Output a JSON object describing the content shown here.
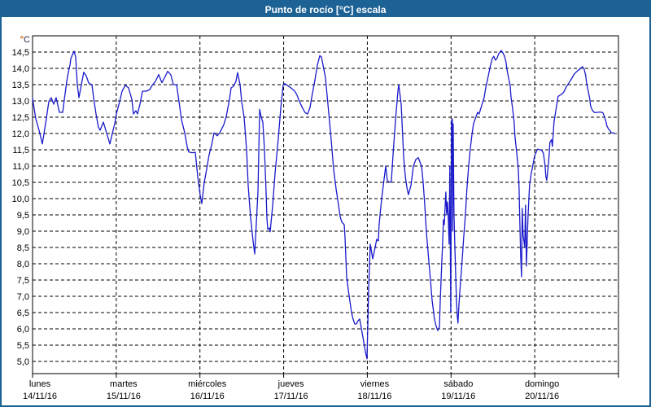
{
  "window": {
    "title": "Punto de rocío [°C] escala"
  },
  "chart_data": {
    "type": "line",
    "title": "Punto de rocío [°C] escala",
    "ylabel": "°C",
    "y_unit": "°C",
    "ylim": [
      5.0,
      14.5
    ],
    "ytick_step": 0.5,
    "decimal_separator": ",",
    "grid": "dashed",
    "legend_position": "none",
    "line_color": "#1a1acc",
    "x_axis": {
      "unit": "days",
      "range_days": 7,
      "days": [
        {
          "weekday": "lunes",
          "date": "14/11/16"
        },
        {
          "weekday": "martes",
          "date": "15/11/16"
        },
        {
          "weekday": "miércoles",
          "date": "16/11/16"
        },
        {
          "weekday": "jueves",
          "date": "17/11/16"
        },
        {
          "weekday": "viernes",
          "date": "18/11/16"
        },
        {
          "weekday": "sábado",
          "date": "19/11/16"
        },
        {
          "weekday": "domingo",
          "date": "20/11/16"
        }
      ]
    },
    "series": [
      {
        "name": "Punto de rocío",
        "points": [
          [
            0.0,
            13.08
          ],
          [
            0.039,
            12.45
          ],
          [
            0.078,
            12.1
          ],
          [
            0.117,
            11.68
          ],
          [
            0.156,
            12.3
          ],
          [
            0.194,
            12.98
          ],
          [
            0.224,
            13.1
          ],
          [
            0.253,
            12.9
          ],
          [
            0.282,
            13.1
          ],
          [
            0.321,
            12.65
          ],
          [
            0.36,
            12.65
          ],
          [
            0.408,
            13.6
          ],
          [
            0.437,
            14.0
          ],
          [
            0.447,
            14.1
          ],
          [
            0.457,
            14.3
          ],
          [
            0.496,
            14.53
          ],
          [
            0.515,
            14.35
          ],
          [
            0.535,
            13.5
          ],
          [
            0.554,
            13.1
          ],
          [
            0.583,
            13.5
          ],
          [
            0.612,
            13.88
          ],
          [
            0.642,
            13.77
          ],
          [
            0.671,
            13.55
          ],
          [
            0.69,
            13.52
          ],
          [
            0.71,
            13.5
          ],
          [
            0.729,
            13.1
          ],
          [
            0.758,
            12.6
          ],
          [
            0.787,
            12.2
          ],
          [
            0.807,
            12.1
          ],
          [
            0.846,
            12.35
          ],
          [
            0.875,
            12.1
          ],
          [
            0.904,
            11.85
          ],
          [
            0.924,
            11.68
          ],
          [
            0.953,
            12.0
          ],
          [
            0.982,
            12.3
          ],
          [
            1.001,
            12.6
          ],
          [
            1.04,
            12.98
          ],
          [
            1.069,
            13.3
          ],
          [
            1.108,
            13.48
          ],
          [
            1.147,
            13.4
          ],
          [
            1.186,
            13.05
          ],
          [
            1.206,
            12.6
          ],
          [
            1.235,
            12.7
          ],
          [
            1.254,
            12.6
          ],
          [
            1.283,
            12.9
          ],
          [
            1.313,
            13.3
          ],
          [
            1.361,
            13.3
          ],
          [
            1.4,
            13.35
          ],
          [
            1.429,
            13.48
          ],
          [
            1.468,
            13.6
          ],
          [
            1.507,
            13.81
          ],
          [
            1.546,
            13.56
          ],
          [
            1.585,
            13.75
          ],
          [
            1.614,
            13.91
          ],
          [
            1.653,
            13.8
          ],
          [
            1.682,
            13.5
          ],
          [
            1.721,
            13.5
          ],
          [
            1.75,
            12.98
          ],
          [
            1.779,
            12.43
          ],
          [
            1.818,
            12.02
          ],
          [
            1.847,
            11.6
          ],
          [
            1.867,
            11.43
          ],
          [
            1.906,
            11.41
          ],
          [
            1.944,
            11.42
          ],
          [
            1.974,
            10.68
          ],
          [
            2.003,
            10.1
          ],
          [
            2.022,
            9.85
          ],
          [
            2.051,
            10.5
          ],
          [
            2.071,
            10.77
          ],
          [
            2.11,
            11.35
          ],
          [
            2.139,
            11.64
          ],
          [
            2.168,
            12.02
          ],
          [
            2.207,
            11.93
          ],
          [
            2.236,
            12.02
          ],
          [
            2.285,
            12.27
          ],
          [
            2.314,
            12.52
          ],
          [
            2.353,
            13.05
          ],
          [
            2.372,
            13.4
          ],
          [
            2.401,
            13.45
          ],
          [
            2.43,
            13.6
          ],
          [
            2.45,
            13.87
          ],
          [
            2.479,
            13.5
          ],
          [
            2.499,
            12.98
          ],
          [
            2.528,
            12.5
          ],
          [
            2.557,
            11.5
          ],
          [
            2.576,
            10.4
          ],
          [
            2.606,
            9.4
          ],
          [
            2.635,
            8.7
          ],
          [
            2.654,
            8.3
          ],
          [
            2.693,
            10.2
          ],
          [
            2.713,
            12.74
          ],
          [
            2.732,
            12.5
          ],
          [
            2.751,
            12.35
          ],
          [
            2.771,
            11.5
          ],
          [
            2.79,
            10.2
          ],
          [
            2.8,
            9.4
          ],
          [
            2.81,
            9.06
          ],
          [
            2.829,
            9.1
          ],
          [
            2.839,
            8.98
          ],
          [
            2.868,
            9.77
          ],
          [
            2.897,
            10.77
          ],
          [
            2.936,
            11.85
          ],
          [
            2.965,
            12.77
          ],
          [
            2.994,
            13.5
          ],
          [
            3.014,
            13.53
          ],
          [
            3.043,
            13.48
          ],
          [
            3.092,
            13.39
          ],
          [
            3.13,
            13.31
          ],
          [
            3.16,
            13.18
          ],
          [
            3.189,
            12.98
          ],
          [
            3.228,
            12.77
          ],
          [
            3.257,
            12.64
          ],
          [
            3.286,
            12.6
          ],
          [
            3.315,
            12.8
          ],
          [
            3.335,
            13.1
          ],
          [
            3.374,
            13.64
          ],
          [
            3.403,
            14.1
          ],
          [
            3.432,
            14.39
          ],
          [
            3.451,
            14.35
          ],
          [
            3.471,
            14.1
          ],
          [
            3.5,
            13.7
          ],
          [
            3.529,
            12.9
          ],
          [
            3.568,
            11.8
          ],
          [
            3.597,
            10.9
          ],
          [
            3.626,
            10.3
          ],
          [
            3.656,
            9.8
          ],
          [
            3.675,
            9.45
          ],
          [
            3.694,
            9.28
          ],
          [
            3.724,
            9.2
          ],
          [
            3.733,
            8.8
          ],
          [
            3.753,
            7.6
          ],
          [
            3.772,
            7.2
          ],
          [
            3.792,
            6.85
          ],
          [
            3.811,
            6.5
          ],
          [
            3.83,
            6.3
          ],
          [
            3.85,
            6.15
          ],
          [
            3.869,
            6.15
          ],
          [
            3.889,
            6.25
          ],
          [
            3.908,
            6.3
          ],
          [
            3.937,
            5.9
          ],
          [
            3.957,
            5.6
          ],
          [
            3.976,
            5.3
          ],
          [
            3.996,
            5.08
          ],
          [
            4.005,
            6.0
          ],
          [
            4.015,
            7.2
          ],
          [
            4.035,
            8.6
          ],
          [
            4.064,
            8.15
          ],
          [
            4.093,
            8.5
          ],
          [
            4.112,
            8.75
          ],
          [
            4.132,
            8.7
          ],
          [
            4.141,
            9.2
          ],
          [
            4.171,
            10.0
          ],
          [
            4.19,
            10.4
          ],
          [
            4.219,
            11.0
          ],
          [
            4.239,
            10.55
          ],
          [
            4.268,
            10.5
          ],
          [
            4.287,
            10.52
          ],
          [
            4.307,
            11.35
          ],
          [
            4.336,
            12.4
          ],
          [
            4.365,
            13.3
          ],
          [
            4.375,
            13.5
          ],
          [
            4.404,
            12.9
          ],
          [
            4.433,
            11.3
          ],
          [
            4.453,
            10.7
          ],
          [
            4.472,
            10.35
          ],
          [
            4.491,
            10.12
          ],
          [
            4.521,
            10.4
          ],
          [
            4.55,
            11.0
          ],
          [
            4.579,
            11.2
          ],
          [
            4.608,
            11.26
          ],
          [
            4.647,
            11.0
          ],
          [
            4.667,
            10.5
          ],
          [
            4.686,
            9.8
          ],
          [
            4.705,
            9.0
          ],
          [
            4.734,
            8.1
          ],
          [
            4.754,
            7.5
          ],
          [
            4.773,
            6.9
          ],
          [
            4.802,
            6.3
          ],
          [
            4.822,
            6.08
          ],
          [
            4.841,
            5.95
          ],
          [
            4.861,
            6.06
          ],
          [
            4.87,
            6.8
          ],
          [
            4.88,
            7.4
          ],
          [
            4.89,
            8.1
          ],
          [
            4.899,
            8.6
          ],
          [
            4.909,
            9.35
          ],
          [
            4.919,
            9.2
          ],
          [
            4.928,
            9.7
          ],
          [
            4.938,
            10.2
          ],
          [
            4.948,
            9.5
          ],
          [
            4.957,
            9.9
          ],
          [
            4.967,
            9.4
          ],
          [
            4.977,
            8.6
          ],
          [
            4.986,
            11.0
          ],
          [
            4.996,
            6.5
          ],
          [
            5.006,
            12.4
          ],
          [
            5.015,
            12.45
          ],
          [
            5.02,
            9.0
          ],
          [
            5.025,
            12.3
          ],
          [
            5.035,
            9.5
          ],
          [
            5.045,
            8.6
          ],
          [
            5.054,
            7.8
          ],
          [
            5.064,
            6.9
          ],
          [
            5.074,
            6.4
          ],
          [
            5.083,
            6.18
          ],
          [
            5.093,
            6.7
          ],
          [
            5.112,
            7.4
          ],
          [
            5.132,
            8.1
          ],
          [
            5.151,
            8.8
          ],
          [
            5.171,
            9.5
          ],
          [
            5.19,
            10.3
          ],
          [
            5.21,
            11.0
          ],
          [
            5.229,
            11.5
          ],
          [
            5.249,
            11.95
          ],
          [
            5.268,
            12.3
          ],
          [
            5.297,
            12.5
          ],
          [
            5.317,
            12.65
          ],
          [
            5.336,
            12.6
          ],
          [
            5.365,
            12.85
          ],
          [
            5.395,
            13.1
          ],
          [
            5.414,
            13.4
          ],
          [
            5.443,
            13.75
          ],
          [
            5.472,
            14.1
          ],
          [
            5.492,
            14.3
          ],
          [
            5.511,
            14.37
          ],
          [
            5.531,
            14.25
          ],
          [
            5.55,
            14.32
          ],
          [
            5.57,
            14.45
          ],
          [
            5.599,
            14.55
          ],
          [
            5.618,
            14.48
          ],
          [
            5.638,
            14.38
          ],
          [
            5.657,
            14.18
          ],
          [
            5.667,
            13.98
          ],
          [
            5.686,
            13.73
          ],
          [
            5.706,
            13.48
          ],
          [
            5.716,
            13.14
          ],
          [
            5.735,
            12.77
          ],
          [
            5.754,
            12.35
          ],
          [
            5.764,
            11.89
          ],
          [
            5.784,
            11.43
          ],
          [
            5.803,
            10.93
          ],
          [
            5.813,
            10.3
          ],
          [
            5.822,
            9.3
          ],
          [
            5.832,
            8.2
          ],
          [
            5.842,
            7.6
          ],
          [
            5.851,
            9.7
          ],
          [
            5.861,
            8.9
          ],
          [
            5.88,
            8.5
          ],
          [
            5.89,
            9.8
          ],
          [
            5.9,
            7.93
          ],
          [
            5.919,
            9.4
          ],
          [
            5.929,
            9.93
          ],
          [
            5.938,
            10.43
          ],
          [
            5.958,
            10.77
          ],
          [
            5.977,
            11.02
          ],
          [
            5.997,
            11.3
          ],
          [
            6.026,
            11.48
          ],
          [
            6.036,
            11.52
          ],
          [
            6.065,
            11.5
          ],
          [
            6.084,
            11.48
          ],
          [
            6.104,
            11.39
          ],
          [
            6.123,
            11.02
          ],
          [
            6.133,
            10.68
          ],
          [
            6.143,
            10.56
          ],
          [
            6.162,
            11.02
          ],
          [
            6.172,
            11.35
          ],
          [
            6.181,
            11.73
          ],
          [
            6.201,
            11.81
          ],
          [
            6.211,
            11.6
          ],
          [
            6.23,
            12.35
          ],
          [
            6.25,
            12.68
          ],
          [
            6.269,
            12.98
          ],
          [
            6.279,
            13.14
          ],
          [
            6.318,
            13.2
          ],
          [
            6.347,
            13.27
          ],
          [
            6.376,
            13.43
          ],
          [
            6.415,
            13.58
          ],
          [
            6.444,
            13.7
          ],
          [
            6.473,
            13.83
          ],
          [
            6.512,
            13.93
          ],
          [
            6.541,
            13.98
          ],
          [
            6.561,
            14.03
          ],
          [
            6.57,
            14.05
          ],
          [
            6.59,
            13.98
          ],
          [
            6.609,
            13.77
          ],
          [
            6.619,
            13.56
          ],
          [
            6.638,
            13.31
          ],
          [
            6.658,
            13.06
          ],
          [
            6.667,
            12.85
          ],
          [
            6.687,
            12.72
          ],
          [
            6.706,
            12.66
          ],
          [
            6.716,
            12.64
          ],
          [
            6.784,
            12.66
          ],
          [
            6.813,
            12.64
          ],
          [
            6.833,
            12.52
          ],
          [
            6.852,
            12.35
          ],
          [
            6.862,
            12.23
          ],
          [
            6.881,
            12.14
          ],
          [
            6.901,
            12.08
          ],
          [
            6.91,
            12.03
          ],
          [
            6.93,
            12.02
          ],
          [
            6.959,
            12.0
          ]
        ]
      }
    ]
  }
}
